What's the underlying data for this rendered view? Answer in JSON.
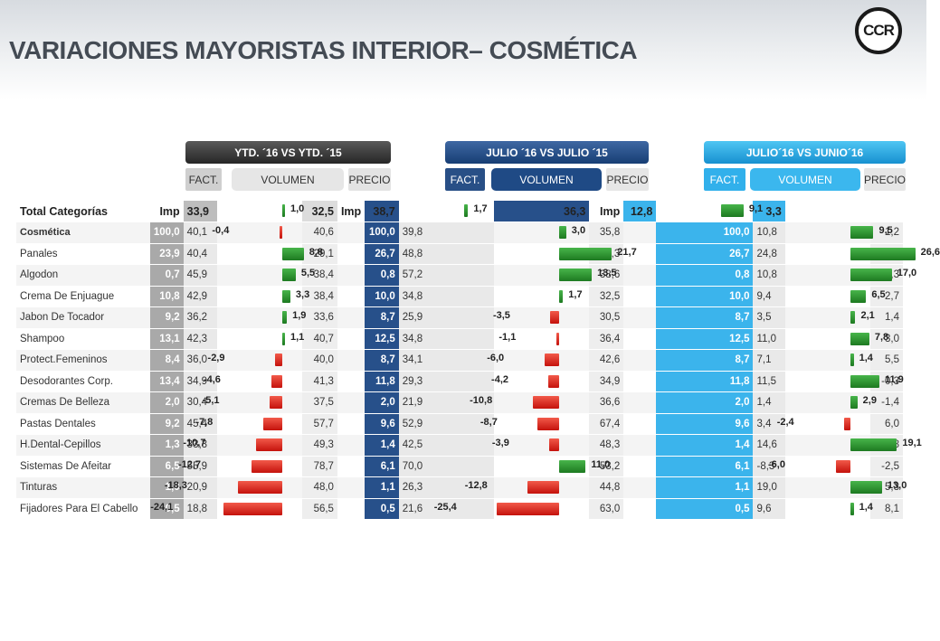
{
  "title": "VARIACIONES MAYORISTAS INTERIOR– COSMÉTICA",
  "logo_text": "CCR",
  "periods": [
    {
      "banner": "YTD. ´16 VS YTD. ´15",
      "fact": "FACT.",
      "volumen": "VOLUMEN",
      "precio": "PRECIO"
    },
    {
      "banner": "JULIO ´16 VS  JULIO ´15",
      "fact": "FACT.",
      "volumen": "VOLUMEN",
      "precio": "PRECIO"
    },
    {
      "banner": "JULIO´16 VS JUNIO´16",
      "fact": "FACT.",
      "volumen": "VOLUMEN",
      "precio": "PRECIO"
    }
  ],
  "colors": {
    "positive": "#1d7a21",
    "negative": "#c4120c",
    "ytd": "#262626",
    "jul": "#173e74",
    "jun": "#1790d0"
  },
  "header_row": {
    "label": "Total  Categorías",
    "imp_label": "Imp",
    "p1": {
      "imp": "33,9",
      "vol": "1,0",
      "precio": "32,5"
    },
    "p2": {
      "imp": "38,7",
      "vol": "1,7",
      "precio": "36,3"
    },
    "p3": {
      "imp": "12,8",
      "vol": "9,1",
      "precio": "3,3"
    }
  },
  "rows": [
    {
      "name": "Cosmética",
      "p1": {
        "imp": "100,0",
        "fact": "40,1",
        "vol": "-0,4",
        "precio": "40,6"
      },
      "p2": {
        "imp": "100,0",
        "fact": "39,8",
        "vol": "3,0",
        "precio": "35,8"
      },
      "p3": {
        "imp": "100,0",
        "fact": "10,8",
        "vol": "9,5",
        "precio": "1,2"
      }
    },
    {
      "name": "Panales",
      "p1": {
        "imp": "23,9",
        "fact": "40,4",
        "vol": "8,8",
        "precio": "29,1"
      },
      "p2": {
        "imp": "26,7",
        "fact": "48,8",
        "vol": "21,7",
        "precio": "22,3"
      },
      "p3": {
        "imp": "26,7",
        "fact": "24,8",
        "vol": "26,6",
        "precio": "-1,4"
      }
    },
    {
      "name": "Algodon",
      "p1": {
        "imp": "0,7",
        "fact": "45,9",
        "vol": "5,5",
        "precio": "38,4"
      },
      "p2": {
        "imp": "0,8",
        "fact": "57,2",
        "vol": "13,5",
        "precio": "38,6"
      },
      "p3": {
        "imp": "0,8",
        "fact": "10,8",
        "vol": "17,0",
        "precio": "-5,3"
      }
    },
    {
      "name": "Crema De Enjuague",
      "p1": {
        "imp": "10,8",
        "fact": "42,9",
        "vol": "3,3",
        "precio": "38,4"
      },
      "p2": {
        "imp": "10,0",
        "fact": "34,8",
        "vol": "1,7",
        "precio": "32,5"
      },
      "p3": {
        "imp": "10,0",
        "fact": "9,4",
        "vol": "6,5",
        "precio": "2,7"
      }
    },
    {
      "name": "Jabon De Tocador",
      "p1": {
        "imp": "9,2",
        "fact": "36,2",
        "vol": "1,9",
        "precio": "33,6"
      },
      "p2": {
        "imp": "8,7",
        "fact": "25,9",
        "vol": "-3,5",
        "precio": "30,5"
      },
      "p3": {
        "imp": "8,7",
        "fact": "3,5",
        "vol": "2,1",
        "precio": "1,4"
      }
    },
    {
      "name": "Shampoo",
      "p1": {
        "imp": "13,1",
        "fact": "42,3",
        "vol": "1,1",
        "precio": "40,7"
      },
      "p2": {
        "imp": "12,5",
        "fact": "34,8",
        "vol": "-1,1",
        "precio": "36,4"
      },
      "p3": {
        "imp": "12,5",
        "fact": "11,0",
        "vol": "7,8",
        "precio": "3,0"
      }
    },
    {
      "name": "Protect.Femeninos",
      "p1": {
        "imp": "8,4",
        "fact": "36,0",
        "vol": "-2,9",
        "precio": "40,0"
      },
      "p2": {
        "imp": "8,7",
        "fact": "34,1",
        "vol": "-6,0",
        "precio": "42,6"
      },
      "p3": {
        "imp": "8,7",
        "fact": "7,1",
        "vol": "1,4",
        "precio": "5,5"
      }
    },
    {
      "name": "Desodorantes Corp.",
      "p1": {
        "imp": "13,4",
        "fact": "34,9",
        "vol": "-4,6",
        "precio": "41,3"
      },
      "p2": {
        "imp": "11,8",
        "fact": "29,3",
        "vol": "-4,2",
        "precio": "34,9"
      },
      "p3": {
        "imp": "11,8",
        "fact": "11,5",
        "vol": "11,9",
        "precio": "-0,3"
      }
    },
    {
      "name": "Cremas De Belleza",
      "p1": {
        "imp": "2,0",
        "fact": "30,4",
        "vol": "-5,1",
        "precio": "37,5"
      },
      "p2": {
        "imp": "2,0",
        "fact": "21,9",
        "vol": "-10,8",
        "precio": "36,6"
      },
      "p3": {
        "imp": "2,0",
        "fact": "1,4",
        "vol": "2,9",
        "precio": "-1,4"
      }
    },
    {
      "name": "Pastas Dentales",
      "p1": {
        "imp": "9,2",
        "fact": "45,4",
        "vol": "-7,8",
        "precio": "57,7"
      },
      "p2": {
        "imp": "9,6",
        "fact": "52,9",
        "vol": "-8,7",
        "precio": "67,4"
      },
      "p3": {
        "imp": "9,6",
        "fact": "3,4",
        "vol": "-2,4",
        "precio": "6,0"
      }
    },
    {
      "name": "H.Dental-Cepillos",
      "p1": {
        "imp": "1,3",
        "fact": "33,3",
        "vol": "-10,7",
        "precio": "49,3"
      },
      "p2": {
        "imp": "1,4",
        "fact": "42,5",
        "vol": "-3,9",
        "precio": "48,3"
      },
      "p3": {
        "imp": "1,4",
        "fact": "14,6",
        "vol": "19,1",
        "precio": "-3,8"
      }
    },
    {
      "name": "Sistemas De Afeitar",
      "p1": {
        "imp": "6,5",
        "fact": "55,9",
        "vol": "-12,7",
        "precio": "78,7"
      },
      "p2": {
        "imp": "6,1",
        "fact": "70,0",
        "vol": "11,0",
        "precio": "53,2"
      },
      "p3": {
        "imp": "6,1",
        "fact": "-8,3",
        "vol": "-6,0",
        "precio": "-2,5"
      }
    },
    {
      "name": "Tinturas",
      "p1": {
        "imp": "1,0",
        "fact": "20,9",
        "vol": "-18,3",
        "precio": "48,0"
      },
      "p2": {
        "imp": "1,1",
        "fact": "26,3",
        "vol": "-12,8",
        "precio": "44,8"
      },
      "p3": {
        "imp": "1,1",
        "fact": "19,0",
        "vol": "13,0",
        "precio": "5,3"
      }
    },
    {
      "name": "Fijadores Para El Cabello",
      "p1": {
        "imp": "0,5",
        "fact": "18,8",
        "vol": "-24,1",
        "precio": "56,5"
      },
      "p2": {
        "imp": "0,5",
        "fact": "21,6",
        "vol": "-25,4",
        "precio": "63,0"
      },
      "p3": {
        "imp": "0,5",
        "fact": "9,6",
        "vol": "1,4",
        "precio": "8,1"
      }
    }
  ]
}
